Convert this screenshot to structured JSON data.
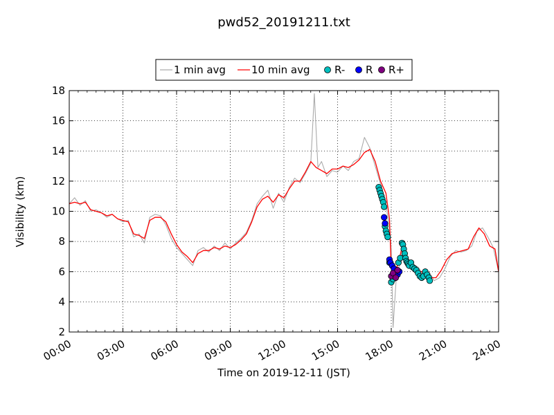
{
  "chart_data": {
    "type": "line",
    "title": "pwd52_20191211.txt",
    "xlabel": "Time on 2019-12-11 (JST)",
    "ylabel": "Visibility (km)",
    "xlim": [
      0,
      24
    ],
    "ylim": [
      2,
      18
    ],
    "xticks": [
      0,
      3,
      6,
      9,
      12,
      15,
      18,
      21,
      24
    ],
    "xtick_labels": [
      "00:00",
      "03:00",
      "06:00",
      "09:00",
      "12:00",
      "15:00",
      "18:00",
      "21:00",
      "24:00"
    ],
    "yticks": [
      2,
      4,
      6,
      8,
      10,
      12,
      14,
      16,
      18
    ],
    "ytick_labels": [
      "2",
      "4",
      "6",
      "8",
      "10",
      "12",
      "14",
      "16",
      "18"
    ],
    "grid": true,
    "legend_position": "top-center",
    "series": [
      {
        "name": "1 min avg",
        "kind": "line",
        "color": "#aaaaaa",
        "x": [
          0.0,
          0.3,
          0.6,
          0.9,
          1.2,
          1.5,
          1.8,
          2.1,
          2.4,
          2.7,
          3.0,
          3.3,
          3.6,
          3.9,
          4.2,
          4.5,
          4.8,
          5.1,
          5.4,
          5.7,
          6.0,
          6.3,
          6.6,
          6.9,
          7.2,
          7.5,
          7.8,
          8.1,
          8.4,
          8.7,
          9.0,
          9.3,
          9.6,
          9.9,
          10.2,
          10.5,
          10.8,
          11.1,
          11.4,
          11.7,
          12.0,
          12.3,
          12.6,
          12.9,
          13.2,
          13.5,
          13.7,
          13.9,
          14.1,
          14.4,
          14.7,
          15.0,
          15.3,
          15.6,
          15.9,
          16.2,
          16.5,
          16.8,
          17.1,
          17.4,
          17.7,
          17.9,
          18.0,
          18.1,
          18.3,
          18.5,
          18.7,
          18.9,
          19.2,
          19.5,
          19.8,
          20.1,
          20.4,
          20.7,
          21.0,
          21.3,
          21.6,
          21.9,
          22.2,
          22.5,
          22.8,
          23.1,
          23.4,
          23.7,
          24.0
        ],
        "y": [
          10.5,
          10.9,
          10.4,
          10.7,
          10.0,
          10.1,
          9.9,
          9.6,
          9.8,
          9.5,
          9.3,
          9.4,
          8.3,
          8.5,
          7.9,
          9.6,
          9.8,
          9.7,
          9.1,
          8.2,
          7.6,
          7.2,
          6.8,
          6.4,
          7.4,
          7.6,
          7.3,
          7.7,
          7.4,
          7.9,
          7.5,
          7.9,
          8.2,
          8.6,
          9.4,
          10.5,
          11.0,
          11.4,
          10.2,
          11.2,
          10.6,
          11.6,
          12.2,
          11.9,
          12.5,
          13.2,
          17.8,
          12.9,
          13.3,
          12.3,
          12.7,
          12.6,
          13.0,
          12.7,
          13.3,
          13.5,
          14.9,
          14.2,
          13.0,
          11.8,
          10.5,
          8.8,
          7.5,
          2.3,
          6.0,
          6.5,
          7.9,
          6.5,
          6.5,
          6.3,
          5.8,
          6.0,
          5.4,
          5.6,
          6.2,
          7.0,
          7.4,
          7.3,
          7.4,
          7.7,
          8.7,
          8.9,
          8.3,
          7.6,
          6.0
        ]
      },
      {
        "name": "10 min avg",
        "kind": "line",
        "color": "#ff0000",
        "x": [
          0.0,
          0.3,
          0.6,
          0.9,
          1.2,
          1.5,
          1.8,
          2.1,
          2.4,
          2.7,
          3.0,
          3.3,
          3.6,
          3.9,
          4.2,
          4.5,
          4.8,
          5.1,
          5.4,
          5.7,
          6.0,
          6.3,
          6.6,
          6.9,
          7.2,
          7.5,
          7.8,
          8.1,
          8.4,
          8.7,
          9.0,
          9.3,
          9.6,
          9.9,
          10.2,
          10.5,
          10.8,
          11.1,
          11.4,
          11.7,
          12.0,
          12.3,
          12.6,
          12.9,
          13.2,
          13.5,
          13.8,
          14.1,
          14.4,
          14.7,
          15.0,
          15.3,
          15.6,
          15.9,
          16.2,
          16.5,
          16.8,
          17.1,
          17.4,
          17.7,
          17.9,
          18.0,
          18.2,
          18.4,
          18.6,
          18.8,
          19.0,
          19.3,
          19.6,
          19.9,
          20.2,
          20.5,
          20.8,
          21.1,
          21.4,
          21.7,
          22.0,
          22.3,
          22.6,
          22.9,
          23.2,
          23.5,
          23.8,
          24.0
        ],
        "y": [
          10.5,
          10.6,
          10.5,
          10.6,
          10.1,
          10.0,
          9.9,
          9.7,
          9.8,
          9.5,
          9.4,
          9.3,
          8.5,
          8.4,
          8.2,
          9.4,
          9.6,
          9.6,
          9.3,
          8.5,
          7.8,
          7.3,
          7.0,
          6.6,
          7.2,
          7.4,
          7.4,
          7.6,
          7.5,
          7.7,
          7.6,
          7.8,
          8.1,
          8.5,
          9.3,
          10.3,
          10.8,
          11.0,
          10.6,
          11.1,
          10.9,
          11.5,
          12.0,
          12.0,
          12.6,
          13.3,
          12.9,
          12.7,
          12.5,
          12.8,
          12.8,
          13.0,
          12.9,
          13.1,
          13.4,
          13.9,
          14.1,
          13.3,
          12.0,
          11.2,
          9.5,
          6.2,
          5.9,
          6.6,
          7.6,
          6.8,
          6.5,
          6.4,
          6.0,
          6.0,
          5.6,
          5.6,
          6.1,
          6.8,
          7.2,
          7.3,
          7.4,
          7.5,
          8.3,
          8.9,
          8.5,
          7.7,
          7.5,
          6.0
        ]
      },
      {
        "name": "R-",
        "kind": "scatter",
        "color": "#00bfbf",
        "x": [
          17.3,
          17.35,
          17.4,
          17.45,
          17.5,
          17.55,
          17.6,
          17.65,
          17.7,
          17.75,
          17.8,
          17.9,
          18.0,
          18.1,
          18.2,
          18.3,
          18.4,
          18.5,
          18.6,
          18.65,
          18.7,
          18.75,
          18.8,
          18.85,
          18.9,
          18.95,
          19.0,
          19.1,
          19.2,
          19.3,
          19.4,
          19.5,
          19.6,
          19.7,
          19.8,
          19.9,
          20.0,
          20.1,
          20.15
        ],
        "y": [
          11.6,
          11.4,
          11.2,
          11.0,
          10.8,
          10.6,
          10.3,
          9.0,
          8.7,
          8.5,
          8.3,
          6.6,
          5.3,
          5.5,
          5.8,
          6.1,
          6.6,
          6.9,
          7.9,
          7.8,
          7.5,
          7.2,
          6.9,
          6.7,
          6.6,
          6.5,
          6.4,
          6.6,
          6.3,
          6.2,
          6.1,
          5.9,
          5.7,
          5.6,
          5.7,
          6.0,
          5.8,
          5.6,
          5.4
        ]
      },
      {
        "name": "R",
        "kind": "scatter",
        "color": "#0000ff",
        "x": [
          17.6,
          17.65,
          17.9,
          17.95,
          18.05,
          18.15,
          18.25,
          18.35,
          18.45
        ],
        "y": [
          9.6,
          9.2,
          6.8,
          6.6,
          6.4,
          6.2,
          5.9,
          5.8,
          6.0
        ]
      },
      {
        "name": "R+",
        "kind": "scatter",
        "color": "#800080",
        "x": [
          18.0,
          18.1,
          18.25,
          18.35
        ],
        "y": [
          5.7,
          5.9,
          5.6,
          6.1
        ]
      }
    ]
  }
}
